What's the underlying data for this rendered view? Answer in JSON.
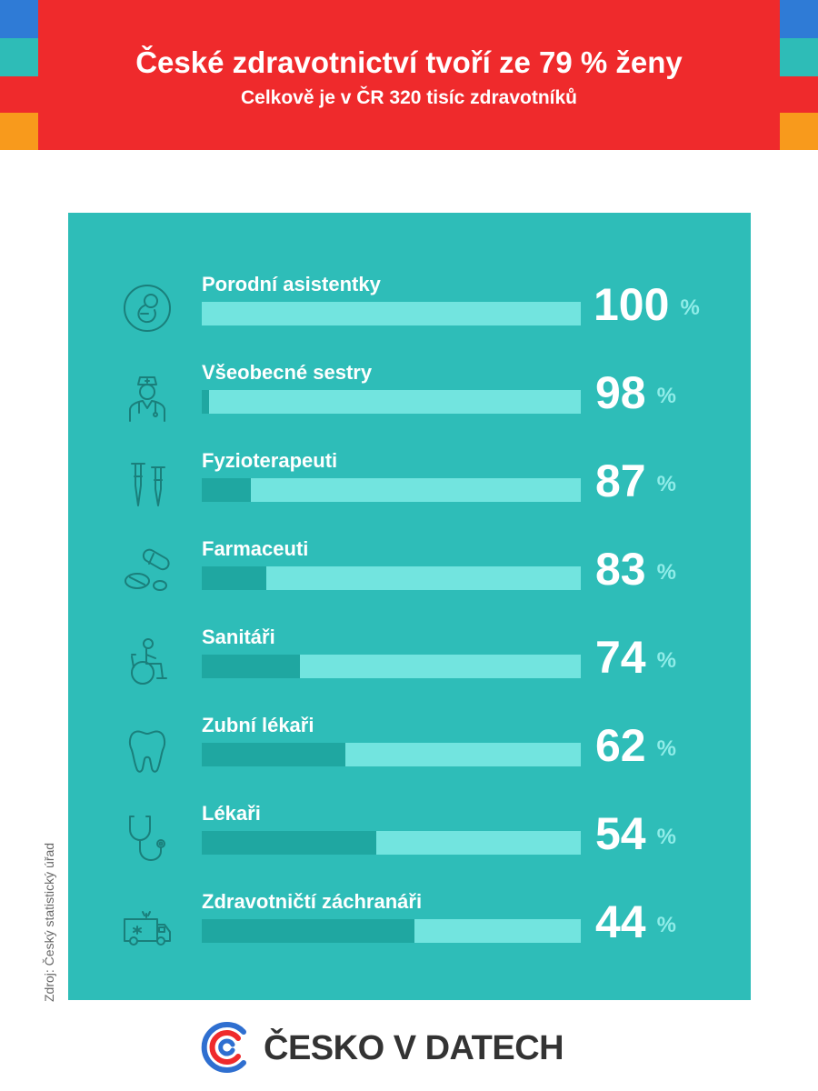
{
  "header": {
    "title": "České zdravotnictví tvoří ze 79 % ženy",
    "subtitle": "Celkově je v ČR 320 tisíc zdravotníků"
  },
  "colors": {
    "header_red": "#ef2a2c",
    "panel_teal": "#2ebdb8",
    "bar_light": "#72e4df",
    "bar_dark": "#1fa7a1",
    "corner_blue": "#2f7bd6",
    "corner_orange": "#f89a1c"
  },
  "chart_data": {
    "type": "bar",
    "title": "České zdravotnictví tvoří ze 79 % ženy",
    "subtitle": "Celkově je v ČR 320 tisíc zdravotníků",
    "unit": "%",
    "ylim": [
      0,
      100
    ],
    "categories": [
      "Porodní asistentky",
      "Všeobecné sestry",
      "Fyzioterapeuti",
      "Farmaceuti",
      "Sanitáři",
      "Zubní lékaři",
      "Lékaři",
      "Zdravotničtí záchranáři"
    ],
    "values": [
      100,
      98,
      87,
      83,
      74,
      62,
      54,
      44
    ],
    "icons": [
      "fetus-icon",
      "nurse-icon",
      "crutches-icon",
      "pills-icon",
      "wheelchair-icon",
      "tooth-icon",
      "stethoscope-icon",
      "ambulance-icon"
    ]
  },
  "source": "Zdroj: Český statistický úřad",
  "logo": {
    "text": "ČESKO V DATECH"
  }
}
